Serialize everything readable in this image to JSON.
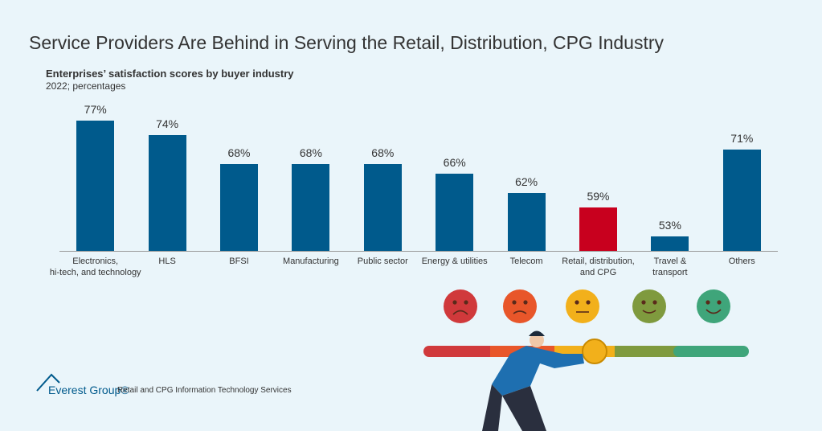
{
  "chart_data": {
    "type": "bar",
    "title": "Service Providers Are Behind in Serving the Retail, Distribution, CPG Industry",
    "subtitle": "Enterprises’ satisfaction scores by buyer industry",
    "note": "2022; percentages",
    "categories": [
      "Electronics,\nhi-tech, and technology",
      "HLS",
      "BFSI",
      "Manufacturing",
      "Public sector",
      "Energy & utilities",
      "Telecom",
      "Retail, distribution,\nand CPG",
      "Travel &\ntransport",
      "Others"
    ],
    "values": [
      77,
      74,
      68,
      68,
      68,
      66,
      62,
      59,
      53,
      71
    ],
    "value_labels": [
      "77%",
      "74%",
      "68%",
      "68%",
      "68%",
      "66%",
      "62%",
      "59%",
      "53%",
      "71%"
    ],
    "colors": [
      "#005a8c",
      "#005a8c",
      "#005a8c",
      "#005a8c",
      "#005a8c",
      "#005a8c",
      "#005a8c",
      "#c8001e",
      "#005a8c",
      "#005a8c"
    ],
    "ylim": [
      50,
      80
    ]
  },
  "footer": {
    "brand": "Everest Group®",
    "text": "Retail and CPG Information Technology Services"
  }
}
